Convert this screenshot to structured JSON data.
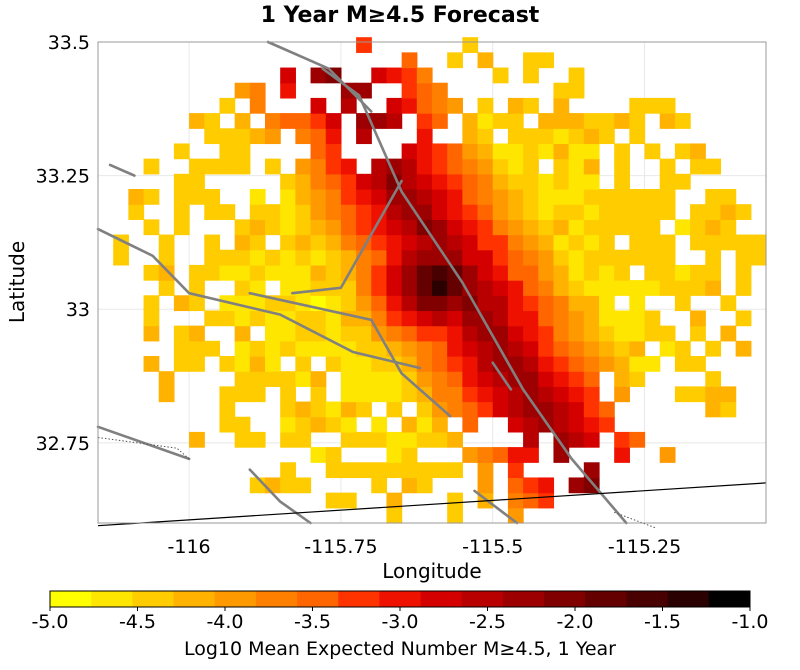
{
  "chart_data": {
    "type": "heatmap",
    "title": "1 Year M≥4.5 Forecast",
    "xlabel": "Longitude",
    "ylabel": "Latitude",
    "xlim": [
      -116.15,
      -115.05
    ],
    "ylim": [
      32.6,
      33.5
    ],
    "xticks": [
      {
        "value": -116,
        "label": "-116"
      },
      {
        "value": -115.75,
        "label": "-115.75"
      },
      {
        "value": -115.5,
        "label": "-115.5"
      },
      {
        "value": -115.25,
        "label": "-115.25"
      }
    ],
    "yticks": [
      {
        "value": 33.5,
        "label": "33.5"
      },
      {
        "value": 33.25,
        "label": "33.25"
      },
      {
        "value": 33,
        "label": "33"
      },
      {
        "value": 32.75,
        "label": "32.75"
      }
    ],
    "grid": true,
    "colorbar": {
      "label": "Log10 Mean Expected Number M≥4.5, 1 Year",
      "range": [
        -5.0,
        -1.0
      ],
      "ticks": [
        "-5.0",
        "-4.5",
        "-4.0",
        "-3.5",
        "-3.0",
        "-2.5",
        "-2.0",
        "-1.5",
        "-1.0"
      ],
      "colors": [
        "#ffff00",
        "#ffe600",
        "#ffcc00",
        "#ffb200",
        "#ff9900",
        "#ff8000",
        "#ff6600",
        "#ff3300",
        "#ee1100",
        "#d40000",
        "#b80000",
        "#9c0000",
        "#800000",
        "#640000",
        "#480000",
        "#2a0000",
        "#000000"
      ]
    },
    "hotspot": {
      "lon": -115.59,
      "lat": 33.05,
      "value": -1.0
    },
    "fault_lines": [
      {
        "type": "fault",
        "points": [
          [
            -115.87,
            33.5
          ],
          [
            -115.77,
            33.45
          ],
          [
            -115.7,
            33.37
          ]
        ]
      },
      {
        "type": "fault",
        "points": [
          [
            -115.78,
            33.45
          ],
          [
            -115.72,
            33.4
          ],
          [
            -115.65,
            33.22
          ],
          [
            -115.55,
            33.05
          ],
          [
            -115.45,
            32.85
          ],
          [
            -115.37,
            32.72
          ],
          [
            -115.28,
            32.6
          ]
        ]
      },
      {
        "type": "fault",
        "points": [
          [
            -116.13,
            33.27
          ],
          [
            -116.09,
            33.25
          ]
        ]
      },
      {
        "type": "fault",
        "points": [
          [
            -116.15,
            33.15
          ],
          [
            -116.06,
            33.1
          ],
          [
            -116.0,
            33.03
          ],
          [
            -115.85,
            32.99
          ],
          [
            -115.73,
            32.92
          ],
          [
            -115.62,
            32.89
          ]
        ]
      },
      {
        "type": "fault",
        "points": [
          [
            -115.83,
            33.03
          ],
          [
            -115.75,
            33.04
          ],
          [
            -115.65,
            33.24
          ]
        ]
      },
      {
        "type": "fault",
        "points": [
          [
            -115.9,
            33.03
          ],
          [
            -115.7,
            32.98
          ],
          [
            -115.65,
            32.88
          ],
          [
            -115.57,
            32.8
          ]
        ]
      },
      {
        "type": "fault",
        "points": [
          [
            -116.15,
            32.78
          ],
          [
            -116.0,
            32.72
          ]
        ]
      },
      {
        "type": "fault",
        "points": [
          [
            -115.9,
            32.7
          ],
          [
            -115.85,
            32.64
          ],
          [
            -115.8,
            32.6
          ]
        ]
      },
      {
        "type": "fault",
        "points": [
          [
            -115.53,
            32.66
          ],
          [
            -115.46,
            32.6
          ]
        ]
      },
      {
        "type": "fault",
        "points": [
          [
            -115.5,
            32.9
          ],
          [
            -115.47,
            32.85
          ]
        ]
      },
      {
        "type": "border",
        "points": [
          [
            -116.15,
            32.595
          ],
          [
            -115.05,
            32.675
          ]
        ]
      },
      {
        "type": "dotted",
        "points": [
          [
            -116.15,
            32.76
          ],
          [
            -116.02,
            32.74
          ],
          [
            -116.0,
            32.72
          ]
        ]
      },
      {
        "type": "dotted",
        "points": [
          [
            -115.3,
            32.62
          ],
          [
            -115.23,
            32.59
          ]
        ]
      }
    ]
  }
}
